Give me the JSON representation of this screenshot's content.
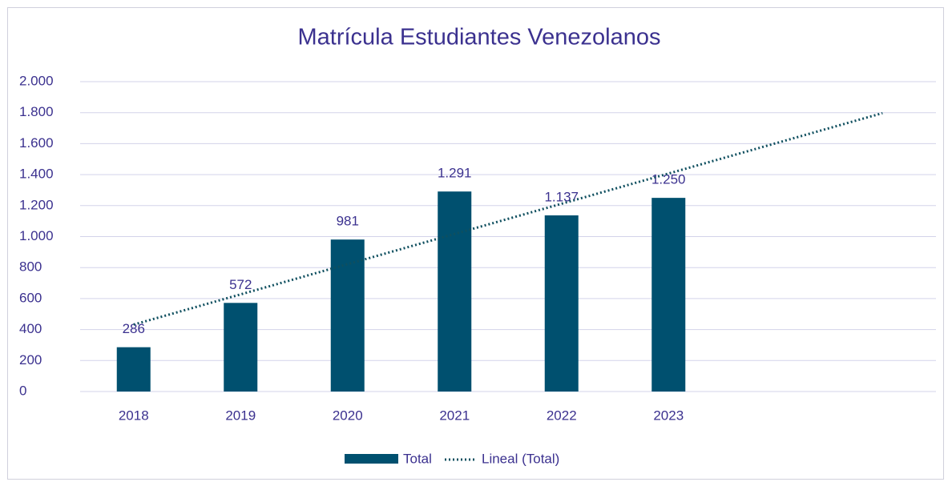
{
  "chart_data": {
    "type": "bar",
    "title": "Matrícula Estudiantes Venezolanos",
    "categories": [
      "2018",
      "2019",
      "2020",
      "2021",
      "2022",
      "2023",
      null,
      null
    ],
    "series": [
      {
        "name": "Total",
        "color": "#00506f",
        "values": [
          286,
          572,
          981,
          1291,
          1137,
          1250,
          null,
          null
        ],
        "value_labels": [
          "286",
          "572",
          "981",
          "1.291",
          "1.137",
          "1.250",
          null,
          null
        ]
      }
    ],
    "trendline": {
      "name": "Lineal (Total)",
      "kind": "linear",
      "forecast_forward": 2,
      "color": "#0f4f5f"
    },
    "ylim": [
      0,
      2000
    ],
    "yticks": [
      0,
      200,
      400,
      600,
      800,
      {
        "value": 1000,
        "label": "1.000"
      },
      {
        "value": 1200,
        "label": "1.200"
      },
      {
        "value": 1400,
        "label": "1.400"
      },
      {
        "value": 1600,
        "label": "1.600"
      },
      {
        "value": 1800,
        "label": "1.800"
      },
      {
        "value": 2000,
        "label": "2.000"
      }
    ],
    "grid": true,
    "legend": "bottom"
  }
}
